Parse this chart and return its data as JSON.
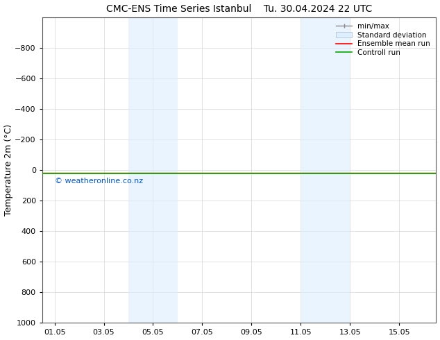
{
  "title": "CMC-ENS Time Series Istanbul",
  "title2": "Tu. 30.04.2024 22 UTC",
  "ylabel": "Temperature 2m (°C)",
  "ylim_top": -1000,
  "ylim_bottom": 1000,
  "yticks": [
    -800,
    -600,
    -400,
    -200,
    0,
    200,
    400,
    600,
    800,
    1000
  ],
  "xtick_labels": [
    "01.05",
    "03.05",
    "05.05",
    "07.05",
    "09.05",
    "11.05",
    "13.05",
    "15.05"
  ],
  "xtick_positions": [
    1,
    3,
    5,
    7,
    9,
    11,
    13,
    15
  ],
  "xlim": [
    0.5,
    16.5
  ],
  "shaded_bands": [
    {
      "x_start": 4.0,
      "x_end": 6.0
    },
    {
      "x_start": 11.0,
      "x_end": 13.0
    }
  ],
  "band_color": "#ddeeff",
  "band_alpha": 0.6,
  "green_line_color": "#00aa00",
  "red_line_color": "#ff0000",
  "watermark": "© weatheronline.co.nz",
  "watermark_color": "#0055cc",
  "bg_color": "#ffffff",
  "plot_bg_color": "#ffffff",
  "grid_color": "#cccccc",
  "tick_fontsize": 8,
  "title_fontsize": 10,
  "ylabel_fontsize": 9,
  "legend_fontsize": 7.5
}
